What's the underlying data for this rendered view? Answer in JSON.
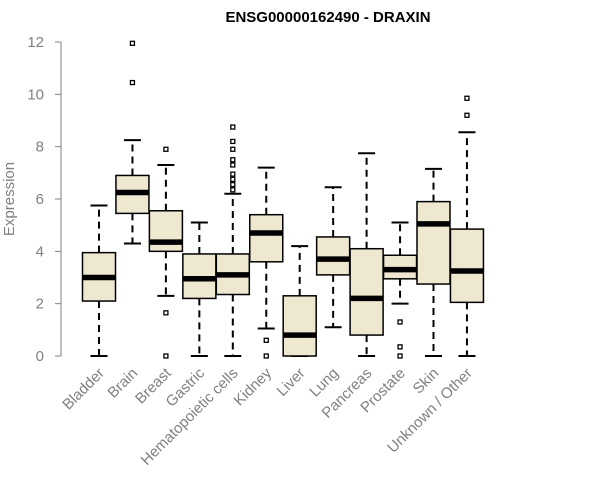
{
  "chart_data": {
    "type": "boxplot",
    "title": "ENSG00000162490 - DRAXIN",
    "xlabel": "",
    "ylabel": "Expression",
    "ylim": [
      0,
      12
    ],
    "yticks": [
      0,
      2,
      4,
      6,
      8,
      10,
      12
    ],
    "grid": false,
    "legend": "none",
    "box_fill": "#efe8d0",
    "box_stroke": "#000000",
    "axis_color": "#808080",
    "categories": [
      "Bladder",
      "Brain",
      "Breast",
      "Gastric",
      "Hematopoietic cells",
      "Kidney",
      "Liver",
      "Lung",
      "Pancreas",
      "Prostate",
      "Skin",
      "Unknown / Other"
    ],
    "boxes": [
      {
        "category": "Bladder",
        "whisker_low": 0.0,
        "q1": 2.1,
        "median": 3.0,
        "q3": 3.95,
        "whisker_high": 5.75,
        "outliers": []
      },
      {
        "category": "Brain",
        "whisker_low": 4.3,
        "q1": 5.45,
        "median": 6.25,
        "q3": 6.9,
        "whisker_high": 8.25,
        "outliers": [
          10.45,
          11.95
        ]
      },
      {
        "category": "Breast",
        "whisker_low": 2.3,
        "q1": 4.0,
        "median": 4.35,
        "q3": 5.55,
        "whisker_high": 7.3,
        "outliers": [
          0.0,
          1.65,
          7.9
        ]
      },
      {
        "category": "Gastric",
        "whisker_low": 0.0,
        "q1": 2.2,
        "median": 2.95,
        "q3": 3.9,
        "whisker_high": 5.1,
        "outliers": []
      },
      {
        "category": "Hematopoietic cells",
        "whisker_low": 0.0,
        "q1": 2.35,
        "median": 3.1,
        "q3": 3.9,
        "whisker_high": 6.2,
        "outliers": [
          6.35,
          6.55,
          6.75,
          6.95,
          7.3,
          7.5,
          7.9,
          8.2,
          8.75
        ]
      },
      {
        "category": "Kidney",
        "whisker_low": 1.05,
        "q1": 3.6,
        "median": 4.7,
        "q3": 5.4,
        "whisker_high": 7.2,
        "outliers": [
          0.0,
          0.6
        ]
      },
      {
        "category": "Liver",
        "whisker_low": 0.0,
        "q1": 0.0,
        "median": 0.8,
        "q3": 2.3,
        "whisker_high": 4.2,
        "outliers": []
      },
      {
        "category": "Lung",
        "whisker_low": 1.1,
        "q1": 3.1,
        "median": 3.7,
        "q3": 4.55,
        "whisker_high": 6.45,
        "outliers": []
      },
      {
        "category": "Pancreas",
        "whisker_low": 0.0,
        "q1": 0.8,
        "median": 2.2,
        "q3": 4.1,
        "whisker_high": 7.75,
        "outliers": []
      },
      {
        "category": "Prostate",
        "whisker_low": 2.0,
        "q1": 2.95,
        "median": 3.3,
        "q3": 3.85,
        "whisker_high": 5.1,
        "outliers": [
          0.0,
          0.35,
          1.3
        ]
      },
      {
        "category": "Skin",
        "whisker_low": 0.0,
        "q1": 2.75,
        "median": 5.05,
        "q3": 5.9,
        "whisker_high": 7.15,
        "outliers": []
      },
      {
        "category": "Unknown / Other",
        "whisker_low": 0.0,
        "q1": 2.05,
        "median": 3.25,
        "q3": 4.85,
        "whisker_high": 8.55,
        "outliers": [
          9.2,
          9.85
        ]
      }
    ]
  }
}
